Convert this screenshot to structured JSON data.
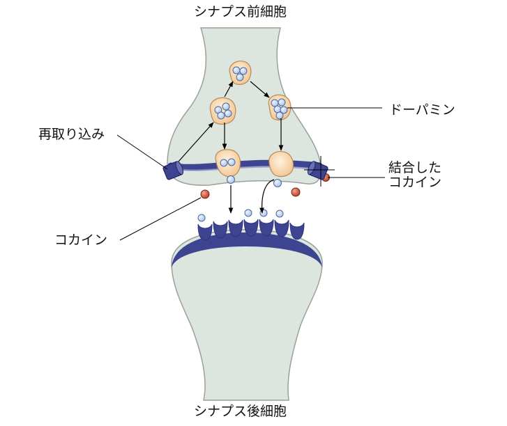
{
  "labels": {
    "presynaptic": "シナプス前細胞",
    "postsynaptic": "シナプス後細胞",
    "reuptake": "再取り込み",
    "dopamine": "ドーパミン",
    "bound_cocaine_line1": "結合した",
    "bound_cocaine_line2": "コカイン",
    "cocaine": "コカイン"
  },
  "colors": {
    "cell_fill": "#dde5df",
    "cell_outline": "#9aa09c",
    "membrane": "#3d4591",
    "membrane_highlight": "#8389c4",
    "vesicle_fill": "#f2c48f",
    "vesicle_outline": "#b88a55",
    "dopamine_molecule": "#a8c4ec",
    "dopamine_outline": "#4f6796",
    "cocaine_molecule": "#c0452c",
    "transporter": "#2e3580",
    "line": "#000000"
  }
}
